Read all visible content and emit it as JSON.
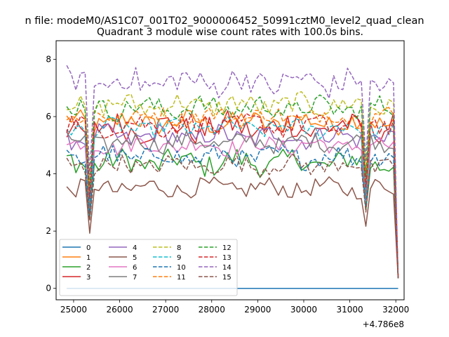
{
  "figure": {
    "suptitle": "n file: modeM0/AS1C07_001T02_9000006452_50991cztM0_level2_quad_clean",
    "offset_text": "+4.786e8"
  },
  "chart_data": {
    "type": "line",
    "title": "Quadrant 3 module wise count rates with 100.0s bins.",
    "xlabel": "",
    "ylabel": "",
    "x_offset": 478600000,
    "xlim": [
      24620,
      32180
    ],
    "ylim": [
      -0.4,
      8.65
    ],
    "xticks": [
      25000,
      26000,
      27000,
      28000,
      29000,
      30000,
      31000,
      32000
    ],
    "xtick_labels": [
      "25000",
      "26000",
      "27000",
      "28000",
      "29000",
      "30000",
      "31000",
      "32000"
    ],
    "yticks": [
      0,
      2,
      4,
      6,
      8
    ],
    "ytick_labels": [
      "0",
      "2",
      "4",
      "6",
      "8"
    ],
    "grid": false,
    "legend": {
      "placement": "lower-left",
      "columns": 4
    },
    "x_start": 24850,
    "x_step": 100,
    "n_points": 73,
    "dips": [
      {
        "x": 25350,
        "factor": 0.55
      },
      {
        "x": 31350,
        "factor": 0.62
      }
    ],
    "end_value": 0.35,
    "series": [
      {
        "name": "0",
        "color": "#1f77b4",
        "dash": "solid",
        "flat": 0
      },
      {
        "name": "1",
        "color": "#ff7f0e",
        "dash": "solid",
        "mean": 5.8,
        "amp": 0.35
      },
      {
        "name": "2",
        "color": "#2ca02c",
        "dash": "solid",
        "mean": 4.4,
        "amp": 0.4
      },
      {
        "name": "3",
        "color": "#d62728",
        "dash": "solid",
        "mean": 5.6,
        "amp": 0.45
      },
      {
        "name": "4",
        "color": "#9467bd",
        "dash": "solid",
        "mean": 5.3,
        "amp": 0.35
      },
      {
        "name": "5",
        "color": "#8c564b",
        "dash": "solid",
        "mean": 3.5,
        "amp": 0.3
      },
      {
        "name": "6",
        "color": "#e377c2",
        "dash": "solid",
        "mean": 5.0,
        "amp": 0.3
      },
      {
        "name": "7",
        "color": "#7f7f7f",
        "dash": "solid",
        "mean": 5.1,
        "amp": 0.3
      },
      {
        "name": "8",
        "color": "#bcbd22",
        "dash": "dashed",
        "mean": 6.4,
        "amp": 0.35
      },
      {
        "name": "9",
        "color": "#17becf",
        "dash": "dashed",
        "mean": 5.6,
        "amp": 0.3
      },
      {
        "name": "10",
        "color": "#1f77b4",
        "dash": "dashed",
        "mean": 4.6,
        "amp": 0.35
      },
      {
        "name": "11",
        "color": "#ff7f0e",
        "dash": "dashed",
        "mean": 6.0,
        "amp": 0.3
      },
      {
        "name": "12",
        "color": "#2ca02c",
        "dash": "dashed",
        "mean": 6.3,
        "amp": 0.35
      },
      {
        "name": "13",
        "color": "#d62728",
        "dash": "dashed",
        "mean": 5.7,
        "amp": 0.35
      },
      {
        "name": "14",
        "color": "#9467bd",
        "dash": "dashed",
        "mean": 7.2,
        "amp": 0.45
      },
      {
        "name": "15",
        "color": "#8c564b",
        "dash": "dashed",
        "mean": 4.3,
        "amp": 0.3
      }
    ]
  }
}
